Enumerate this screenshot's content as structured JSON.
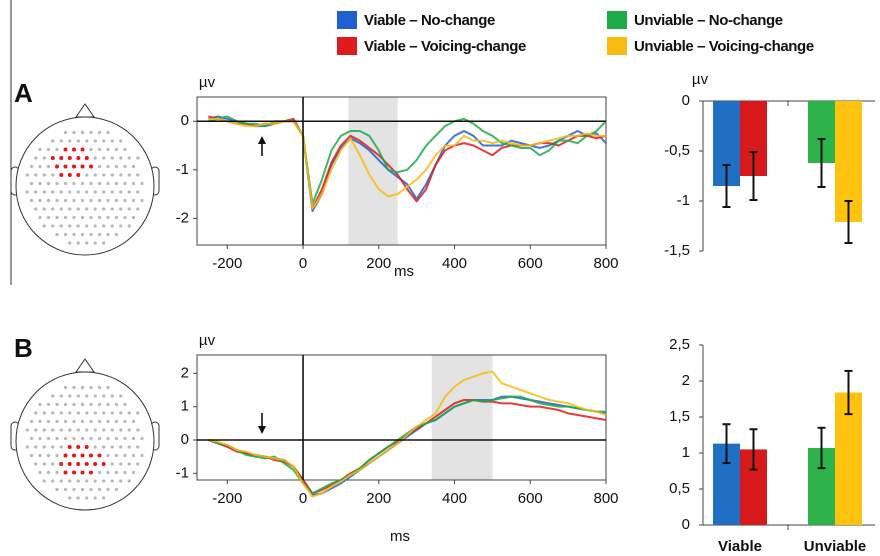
{
  "chart_data": [
    {
      "type": "line",
      "panel": "A",
      "y_label": "µv",
      "x_label": "ms",
      "xlim": [
        -280,
        800
      ],
      "xticks": [
        -200,
        0,
        200,
        400,
        600,
        800
      ],
      "ylim": [
        -2.55,
        0.5
      ],
      "yticks": [
        -2,
        -1,
        0
      ],
      "highlight": [
        120,
        250
      ],
      "x": [
        -250,
        -225,
        -200,
        -175,
        -150,
        -125,
        -100,
        -75,
        -50,
        -25,
        0,
        25,
        50,
        75,
        100,
        125,
        150,
        175,
        200,
        225,
        250,
        275,
        300,
        325,
        350,
        375,
        400,
        425,
        450,
        475,
        500,
        525,
        550,
        575,
        600,
        625,
        650,
        675,
        700,
        725,
        750,
        775,
        800
      ],
      "series": [
        {
          "name": "Viable – No-change",
          "color": "#1f5fd0",
          "values": [
            0.05,
            0.1,
            0.05,
            0,
            -0.05,
            -0.1,
            -0.1,
            -0.05,
            0,
            0,
            -0.3,
            -1.85,
            -1.5,
            -0.9,
            -0.55,
            -0.35,
            -0.45,
            -0.6,
            -0.8,
            -1.0,
            -1.15,
            -1.3,
            -1.6,
            -1.3,
            -0.9,
            -0.5,
            -0.3,
            -0.2,
            -0.3,
            -0.5,
            -0.5,
            -0.5,
            -0.4,
            -0.45,
            -0.5,
            -0.55,
            -0.5,
            -0.4,
            -0.3,
            -0.2,
            -0.3,
            -0.25,
            -0.45
          ]
        },
        {
          "name": "Viable – Voicing-change",
          "color": "#e01b1b",
          "values": [
            0.1,
            0.05,
            0,
            -0.05,
            -0.05,
            -0.1,
            -0.05,
            -0.05,
            0,
            0.05,
            -0.3,
            -1.8,
            -1.4,
            -0.85,
            -0.5,
            -0.3,
            -0.4,
            -0.55,
            -0.7,
            -0.9,
            -1.1,
            -1.4,
            -1.65,
            -1.4,
            -0.9,
            -0.6,
            -0.5,
            -0.45,
            -0.5,
            -0.6,
            -0.7,
            -0.55,
            -0.5,
            -0.5,
            -0.5,
            -0.45,
            -0.45,
            -0.5,
            -0.4,
            -0.3,
            -0.3,
            -0.35,
            -0.3
          ]
        },
        {
          "name": "Unviable – No-change",
          "color": "#1faa4a",
          "values": [
            0,
            0.05,
            0.1,
            0,
            -0.05,
            -0.05,
            -0.1,
            0,
            0,
            0,
            -0.3,
            -1.7,
            -1.2,
            -0.6,
            -0.3,
            -0.2,
            -0.2,
            -0.3,
            -0.6,
            -1.0,
            -1.05,
            -1.0,
            -0.8,
            -0.5,
            -0.3,
            -0.1,
            0,
            0.05,
            -0.05,
            -0.2,
            -0.3,
            -0.45,
            -0.5,
            -0.55,
            -0.55,
            -0.7,
            -0.6,
            -0.4,
            -0.4,
            -0.45,
            -0.3,
            -0.2,
            0
          ]
        },
        {
          "name": "Unviable – Voicing-change",
          "color": "#f7bb12",
          "values": [
            0.05,
            0.05,
            0,
            -0.05,
            -0.1,
            -0.1,
            -0.05,
            -0.05,
            0,
            0,
            -0.3,
            -1.8,
            -1.5,
            -1.0,
            -0.6,
            -0.35,
            -0.7,
            -1.1,
            -1.4,
            -1.55,
            -1.5,
            -1.35,
            -1.2,
            -1.0,
            -0.7,
            -0.5,
            -0.5,
            -0.3,
            -0.4,
            -0.4,
            -0.45,
            -0.4,
            -0.45,
            -0.5,
            -0.5,
            -0.45,
            -0.4,
            -0.35,
            -0.3,
            -0.3,
            -0.25,
            -0.3,
            -0.3
          ]
        }
      ]
    },
    {
      "type": "bar",
      "y_label": "µv",
      "categories": [
        null,
        null
      ],
      "ylim": [
        -1.5,
        0
      ],
      "yticks": [
        0,
        {
          "value": -0.5,
          "label": "-0,5"
        },
        -1,
        {
          "value": -1.5,
          "label": "-1,5"
        }
      ],
      "series": [
        {
          "name": "Viable – No-change",
          "color": "#1f6fc5",
          "values": [
            -0.85,
            null
          ],
          "errors": [
            0.21,
            null
          ]
        },
        {
          "name": "Viable – Voicing-change",
          "color": "#d7191c",
          "values": [
            -0.75,
            null
          ],
          "errors": [
            0.24,
            null
          ]
        },
        {
          "name": "Unviable – No-change",
          "color": "#2db34a",
          "values": [
            null,
            -0.62
          ],
          "errors": [
            null,
            0.24
          ]
        },
        {
          "name": "Unviable – Voicing-change",
          "color": "#ffc20e",
          "values": [
            null,
            -1.21
          ],
          "errors": [
            null,
            0.21
          ]
        }
      ]
    },
    {
      "type": "line",
      "panel": "B",
      "y_label": "µv",
      "x_label": "ms",
      "xlim": [
        -280,
        800
      ],
      "xticks": [
        -200,
        0,
        200,
        400,
        600,
        800
      ],
      "ylim": [
        -1.2,
        2.55
      ],
      "yticks": [
        -1,
        0,
        1,
        2
      ],
      "highlight": [
        340,
        500
      ],
      "x": [
        -250,
        -225,
        -200,
        -175,
        -150,
        -125,
        -100,
        -75,
        -50,
        -25,
        0,
        25,
        50,
        75,
        100,
        125,
        150,
        175,
        200,
        225,
        250,
        275,
        300,
        325,
        350,
        375,
        400,
        425,
        450,
        475,
        500,
        525,
        550,
        575,
        600,
        625,
        650,
        675,
        700,
        725,
        750,
        775,
        800
      ],
      "series": [
        {
          "name": "Viable – No-change",
          "color": "#1f5fd0",
          "values": [
            0,
            -0.1,
            -0.2,
            -0.3,
            -0.4,
            -0.45,
            -0.5,
            -0.55,
            -0.6,
            -0.8,
            -1.2,
            -1.65,
            -1.6,
            -1.45,
            -1.3,
            -1.1,
            -0.9,
            -0.7,
            -0.5,
            -0.3,
            -0.1,
            0.1,
            0.3,
            0.5,
            0.6,
            0.8,
            1.0,
            1.1,
            1.2,
            1.2,
            1.2,
            1.3,
            1.3,
            1.25,
            1.2,
            1.15,
            1.1,
            1.05,
            1.0,
            0.95,
            0.9,
            0.85,
            0.8
          ]
        },
        {
          "name": "Viable – Voicing-change",
          "color": "#e01b1b",
          "values": [
            0,
            -0.1,
            -0.2,
            -0.35,
            -0.4,
            -0.5,
            -0.5,
            -0.6,
            -0.65,
            -0.8,
            -1.2,
            -1.6,
            -1.5,
            -1.35,
            -1.2,
            -1.0,
            -0.85,
            -0.6,
            -0.4,
            -0.2,
            -0.05,
            0.15,
            0.35,
            0.5,
            0.7,
            0.9,
            1.1,
            1.2,
            1.2,
            1.15,
            1.15,
            1.1,
            1.1,
            1.05,
            1.0,
            1.0,
            0.95,
            0.9,
            0.8,
            0.75,
            0.7,
            0.65,
            0.6
          ]
        },
        {
          "name": "Unviable – No-change",
          "color": "#1faa4a",
          "values": [
            0,
            -0.1,
            -0.15,
            -0.3,
            -0.45,
            -0.5,
            -0.55,
            -0.5,
            -0.7,
            -0.9,
            -1.3,
            -1.6,
            -1.45,
            -1.3,
            -1.2,
            -1.05,
            -0.85,
            -0.6,
            -0.4,
            -0.2,
            0,
            0.2,
            0.4,
            0.5,
            0.6,
            0.8,
            1.0,
            1.1,
            1.2,
            1.15,
            1.2,
            1.25,
            1.3,
            1.3,
            1.2,
            1.1,
            1.05,
            1.0,
            1.0,
            0.95,
            0.9,
            0.85,
            0.85
          ]
        },
        {
          "name": "Unviable – Voicing-change",
          "color": "#f7bb12",
          "values": [
            0,
            -0.05,
            -0.15,
            -0.3,
            -0.35,
            -0.45,
            -0.5,
            -0.55,
            -0.6,
            -0.8,
            -1.3,
            -1.7,
            -1.6,
            -1.4,
            -1.25,
            -1.05,
            -0.9,
            -0.7,
            -0.5,
            -0.3,
            -0.1,
            0.15,
            0.4,
            0.6,
            0.8,
            1.3,
            1.6,
            1.8,
            1.9,
            2.0,
            2.05,
            1.7,
            1.6,
            1.5,
            1.4,
            1.3,
            1.2,
            1.15,
            1.1,
            1.0,
            0.9,
            0.85,
            0.75
          ]
        }
      ]
    },
    {
      "type": "bar",
      "categories": [
        "Viable",
        "Unviable"
      ],
      "ylim": [
        0,
        2.5
      ],
      "yticks": [
        0,
        {
          "value": 0.5,
          "label": "0,5"
        },
        1,
        {
          "value": 1.5,
          "label": "1,5"
        },
        2,
        {
          "value": 2.5,
          "label": "2,5"
        }
      ],
      "series": [
        {
          "name": "Viable – No-change",
          "color": "#1f6fc5",
          "values": [
            1.13,
            null
          ],
          "errors": [
            0.27,
            null
          ]
        },
        {
          "name": "Viable – Voicing-change",
          "color": "#d7191c",
          "values": [
            1.05,
            null
          ],
          "errors": [
            0.28,
            null
          ]
        },
        {
          "name": "Unviable – No-change",
          "color": "#2db34a",
          "values": [
            null,
            1.07
          ],
          "errors": [
            null,
            0.28
          ]
        },
        {
          "name": "Unviable – Voicing-change",
          "color": "#ffc20e",
          "values": [
            null,
            1.84
          ],
          "errors": [
            null,
            0.3
          ]
        }
      ]
    }
  ]
}
